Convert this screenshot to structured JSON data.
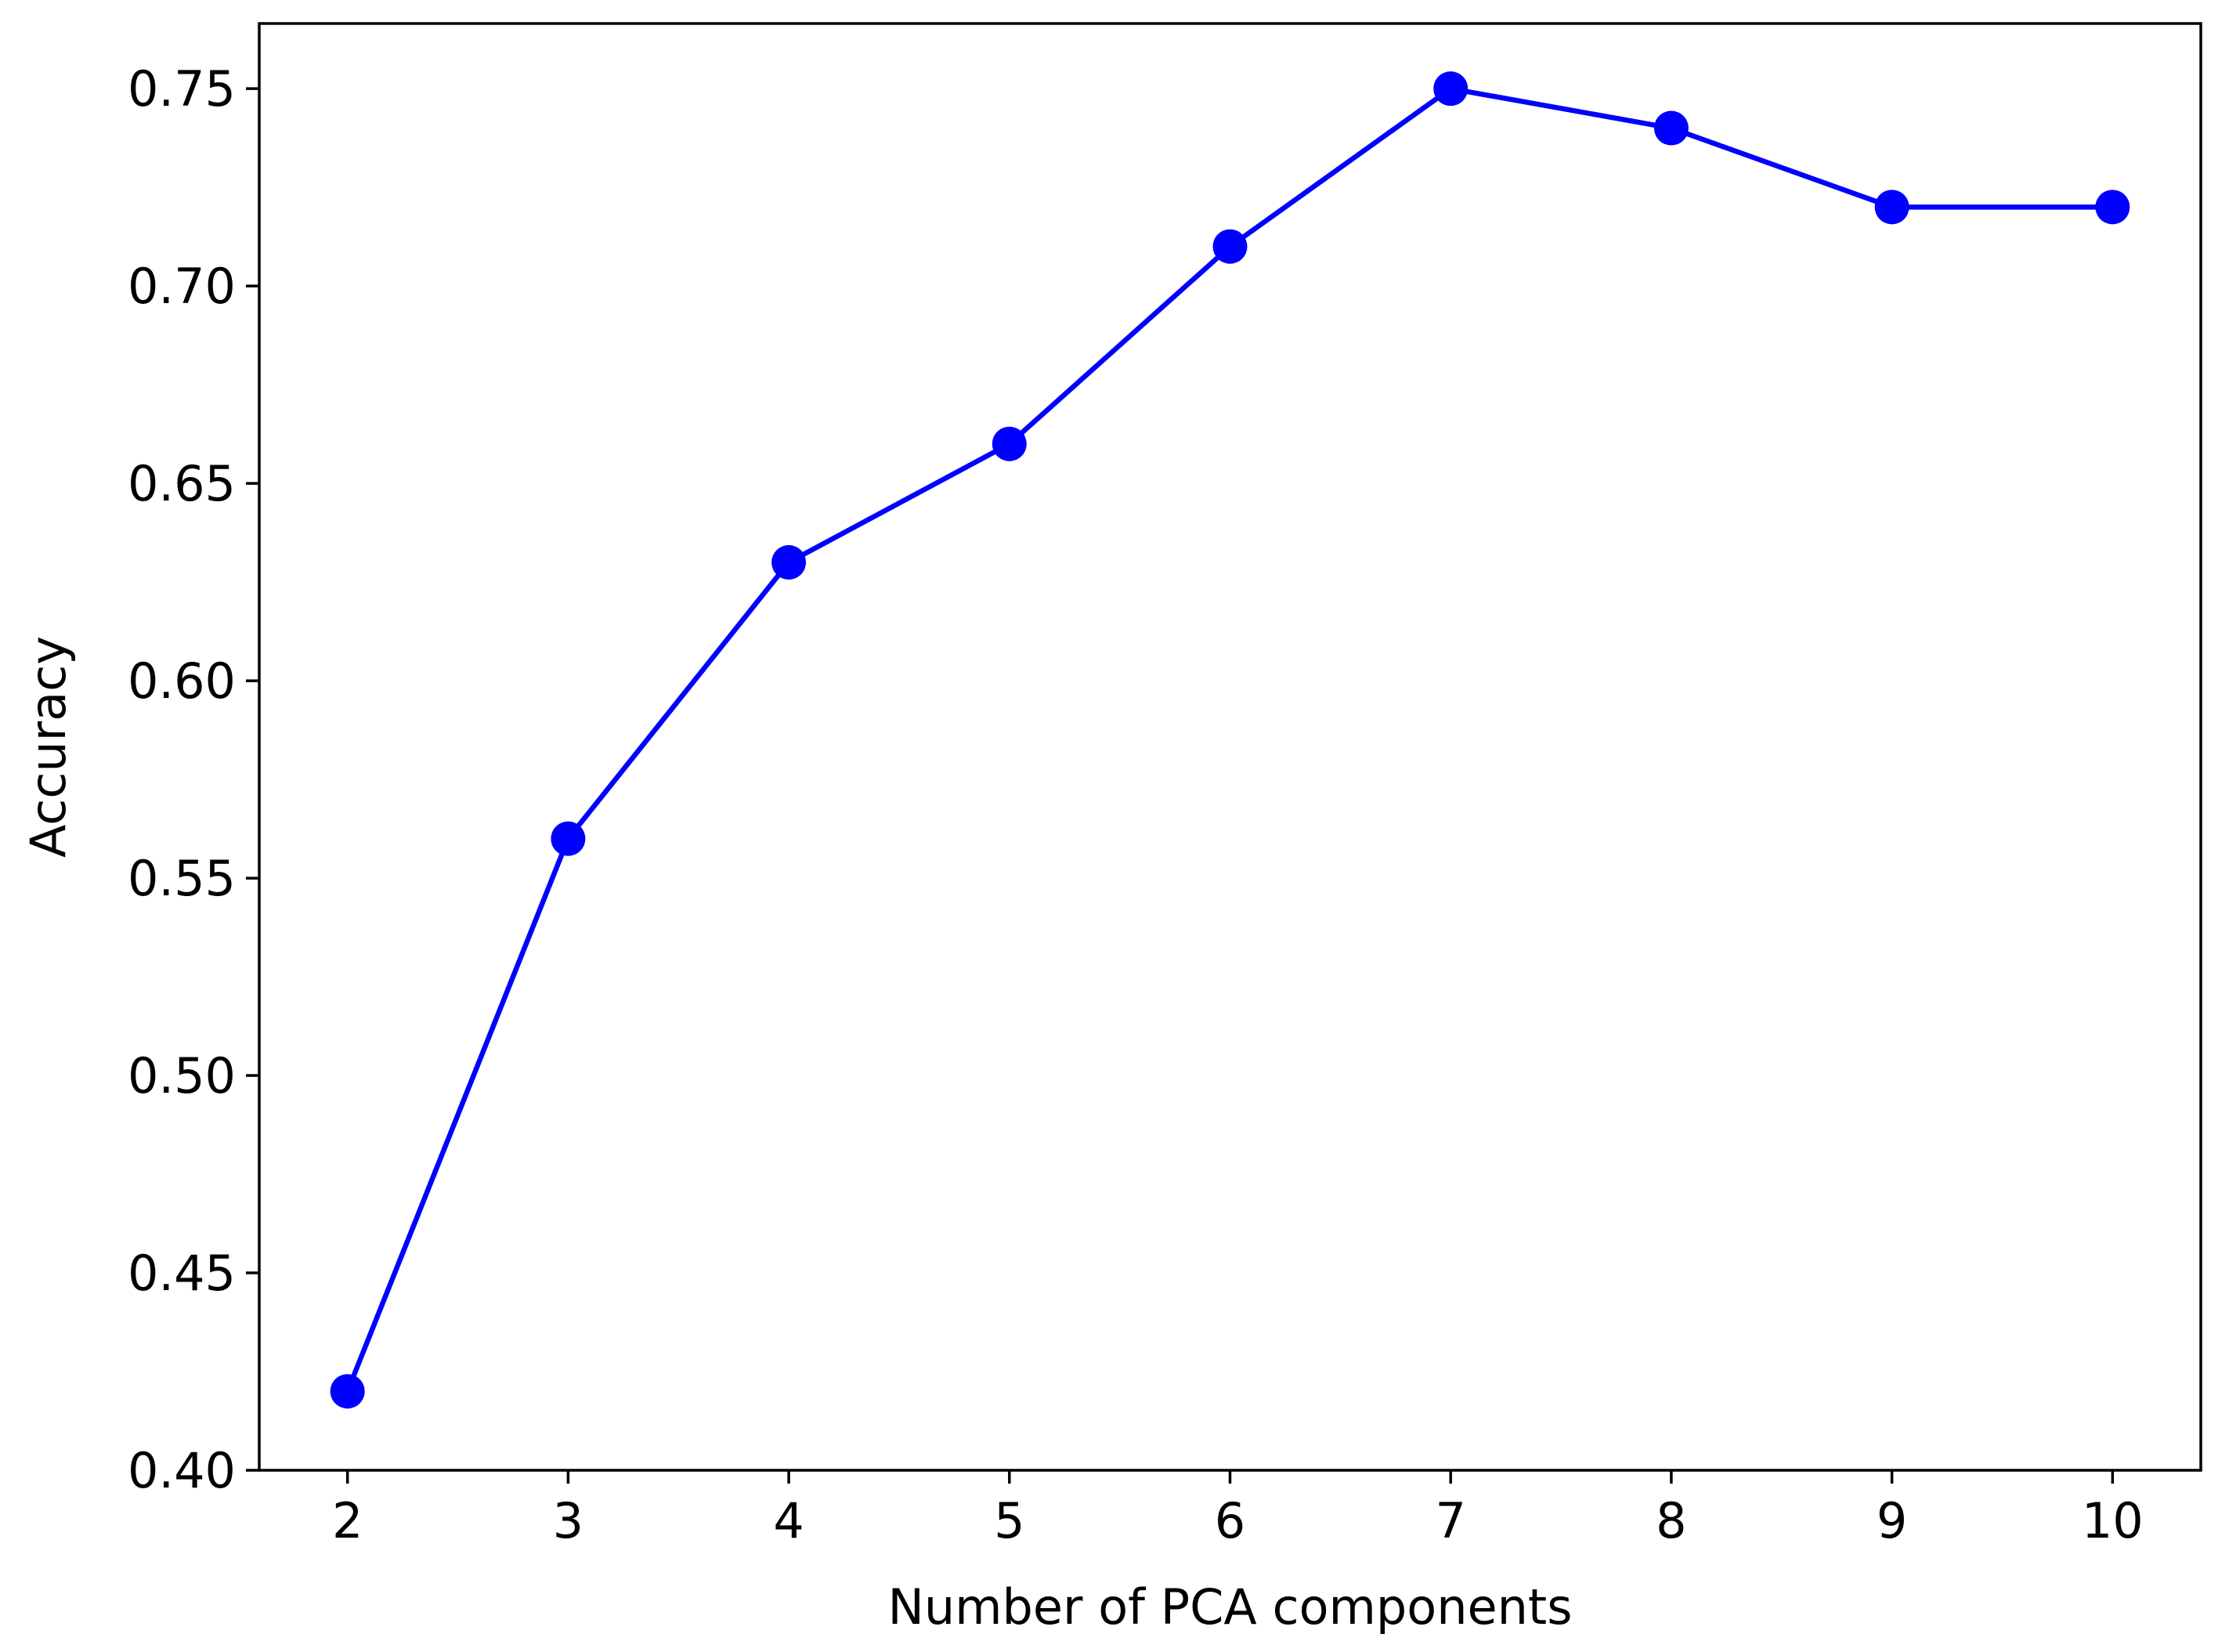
{
  "chart_data": {
    "type": "line",
    "title": "",
    "xlabel": "Number of PCA components",
    "ylabel": "Accuracy",
    "x": [
      2,
      3,
      4,
      5,
      6,
      7,
      8,
      9,
      10
    ],
    "series": [
      {
        "values": [
          0.42,
          0.56,
          0.63,
          0.66,
          0.71,
          0.75,
          0.74,
          0.72,
          0.72
        ],
        "color": "#0000ff",
        "marker": "circle"
      }
    ],
    "xlim": [
      1.6,
      10.4
    ],
    "ylim": [
      0.4,
      0.7665
    ],
    "xticks": [
      2,
      3,
      4,
      5,
      6,
      7,
      8,
      9,
      10
    ],
    "xtick_labels": [
      "2",
      "3",
      "4",
      "5",
      "6",
      "7",
      "8",
      "9",
      "10"
    ],
    "yticks": [
      0.4,
      0.45,
      0.5,
      0.55,
      0.6,
      0.65,
      0.7,
      0.75
    ],
    "ytick_labels": [
      "0.40",
      "0.45",
      "0.50",
      "0.55",
      "0.60",
      "0.65",
      "0.70",
      "0.75"
    ],
    "grid": false,
    "legend": "none"
  }
}
